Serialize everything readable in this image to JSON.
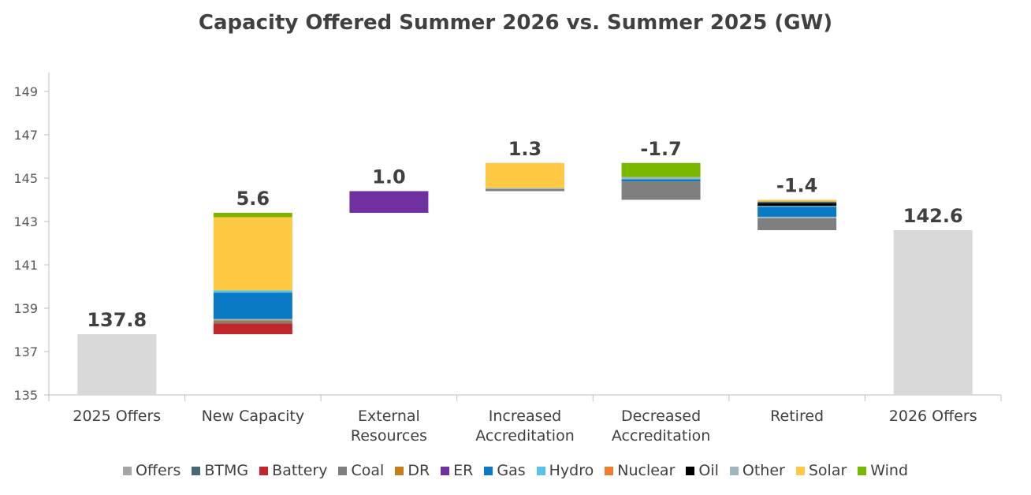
{
  "chart_data": {
    "type": "bar",
    "subtype": "stacked-waterfall",
    "title": "Capacity Offered Summer 2026 vs. Summer  2025 (GW)",
    "ylim": [
      135,
      150
    ],
    "yticks": [
      135,
      137,
      139,
      141,
      143,
      145,
      147,
      149
    ],
    "grid": false,
    "legend_position": "bottom",
    "categories": [
      {
        "label": [
          "2025 Offers"
        ],
        "total_label": "137.8"
      },
      {
        "label": [
          "New Capacity"
        ],
        "total_label": "5.6"
      },
      {
        "label": [
          "External",
          "Resources"
        ],
        "total_label": "1.0"
      },
      {
        "label": [
          "Increased",
          "Accreditation"
        ],
        "total_label": "1.3"
      },
      {
        "label": [
          "Decreased",
          "Accreditation"
        ],
        "total_label": "-1.7"
      },
      {
        "label": [
          "Retired"
        ],
        "total_label": "-1.4"
      },
      {
        "label": [
          "2026 Offers"
        ],
        "total_label": "142.6"
      }
    ],
    "legend": [
      {
        "key": "Offers",
        "name": "Offers",
        "color": "#d9d9d9",
        "swatch": "#a6a6a6"
      },
      {
        "key": "BTMG",
        "name": "BTMG",
        "color": "#466875"
      },
      {
        "key": "Battery",
        "name": "Battery",
        "color": "#c0272d"
      },
      {
        "key": "Coal",
        "name": "Coal",
        "color": "#7f7f7f"
      },
      {
        "key": "DR",
        "name": "DR",
        "color": "#c87d1c"
      },
      {
        "key": "ER",
        "name": "ER",
        "color": "#7030a0"
      },
      {
        "key": "Gas",
        "name": "Gas",
        "color": "#0a7ac6"
      },
      {
        "key": "Hydro",
        "name": "Hydro",
        "color": "#59c2e6"
      },
      {
        "key": "Nuclear",
        "name": "Nuclear",
        "color": "#ee7d31"
      },
      {
        "key": "Oil",
        "name": "Oil",
        "color": "#000000"
      },
      {
        "key": "Other",
        "name": "Other",
        "color": "#9fb6bd"
      },
      {
        "key": "Solar",
        "name": "Solar",
        "color": "#ffc845"
      },
      {
        "key": "Wind",
        "name": "Wind",
        "color": "#7ab800"
      }
    ],
    "segments": [
      {
        "category": 0,
        "type": "Offers",
        "bottom": 135.0,
        "top": 137.8
      },
      {
        "category": 1,
        "type": "Battery",
        "bottom": 137.8,
        "top": 138.3
      },
      {
        "category": 1,
        "type": "Coal",
        "bottom": 138.3,
        "top": 138.4
      },
      {
        "category": 1,
        "type": "DR",
        "bottom": 138.4,
        "top": 138.45
      },
      {
        "category": 1,
        "type": "Other",
        "bottom": 138.45,
        "top": 138.5
      },
      {
        "category": 1,
        "type": "Gas",
        "bottom": 138.5,
        "top": 139.72
      },
      {
        "category": 1,
        "type": "Hydro",
        "bottom": 139.72,
        "top": 139.82
      },
      {
        "category": 1,
        "type": "Solar",
        "bottom": 139.82,
        "top": 143.2
      },
      {
        "category": 1,
        "type": "Wind",
        "bottom": 143.2,
        "top": 143.4
      },
      {
        "category": 2,
        "type": "ER",
        "bottom": 143.4,
        "top": 144.4
      },
      {
        "category": 3,
        "type": "Coal",
        "bottom": 144.4,
        "top": 144.5
      },
      {
        "category": 3,
        "type": "Other",
        "bottom": 144.5,
        "top": 144.55
      },
      {
        "category": 3,
        "type": "Solar",
        "bottom": 144.55,
        "top": 145.7
      },
      {
        "category": 4,
        "type": "Coal",
        "bottom": 144.0,
        "top": 144.85
      },
      {
        "category": 4,
        "type": "Gas",
        "bottom": 144.85,
        "top": 144.95
      },
      {
        "category": 4,
        "type": "Other",
        "bottom": 144.95,
        "top": 145.05
      },
      {
        "category": 4,
        "type": "Wind",
        "bottom": 145.05,
        "top": 145.7
      },
      {
        "category": 5,
        "type": "Coal",
        "bottom": 142.6,
        "top": 143.15
      },
      {
        "category": 5,
        "type": "Other",
        "bottom": 143.15,
        "top": 143.22
      },
      {
        "category": 5,
        "type": "Gas",
        "bottom": 143.22,
        "top": 143.68
      },
      {
        "category": 5,
        "type": "Hydro",
        "bottom": 143.68,
        "top": 143.72
      },
      {
        "category": 5,
        "type": "Oil",
        "bottom": 143.72,
        "top": 143.85
      },
      {
        "category": 5,
        "type": "BTMG",
        "bottom": 143.85,
        "top": 143.92
      },
      {
        "category": 5,
        "type": "Solar",
        "bottom": 143.92,
        "top": 144.0
      },
      {
        "category": 6,
        "type": "Offers",
        "bottom": 135.0,
        "top": 142.6
      }
    ]
  }
}
